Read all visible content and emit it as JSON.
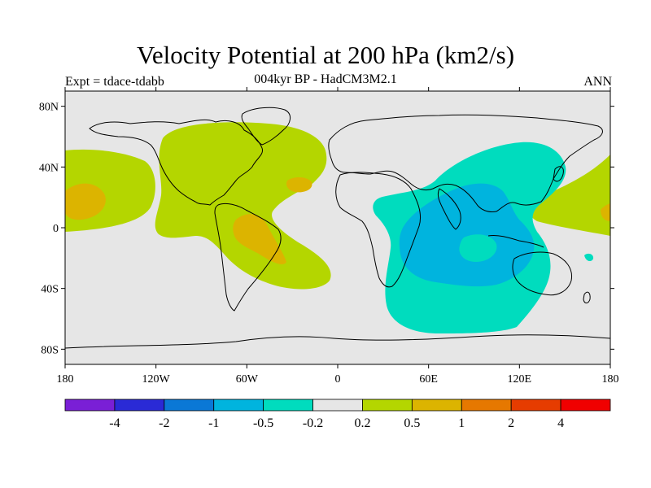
{
  "title": "Velocity Potential at 200 hPa (km2/s)",
  "subtitle": "004kyr BP - HadCM3M2.1",
  "left_label": "Expt = tdace-tdabb",
  "right_label": "ANN",
  "map": {
    "projection": "cylindrical-equidistant",
    "lon_range": [
      -180,
      180
    ],
    "lat_range": [
      -90,
      90
    ],
    "lat_ticks": [
      {
        "value": 80,
        "label": "80N"
      },
      {
        "value": 40,
        "label": "40N"
      },
      {
        "value": 0,
        "label": "0"
      },
      {
        "value": -40,
        "label": "40S"
      },
      {
        "value": -80,
        "label": "80S"
      }
    ],
    "lon_ticks": [
      {
        "value": -180,
        "label": "180"
      },
      {
        "value": -120,
        "label": "120W"
      },
      {
        "value": -60,
        "label": "60W"
      },
      {
        "value": 0,
        "label": "0"
      },
      {
        "value": 60,
        "label": "60E"
      },
      {
        "value": 120,
        "label": "120E"
      },
      {
        "value": 180,
        "label": "180"
      }
    ]
  },
  "colorbar": {
    "colors": [
      "#7a1fd6",
      "#2a2ad6",
      "#0a78d6",
      "#00b4de",
      "#00dcbe",
      "#e6e6e6",
      "#b4d600",
      "#dcb400",
      "#e67800",
      "#e63c00",
      "#f00000"
    ],
    "labels": [
      "-4",
      "-2",
      "-1",
      "-0.5",
      "-0.2",
      "0.2",
      "0.5",
      "1",
      "2",
      "4"
    ]
  },
  "colors": {
    "land_outline": "#000000",
    "background_field": "#e6e6e6",
    "positive_weak": "#b4d600",
    "positive_mid": "#dcb400",
    "negative_weak": "#00dcbe",
    "negative_mid": "#00b4de"
  }
}
